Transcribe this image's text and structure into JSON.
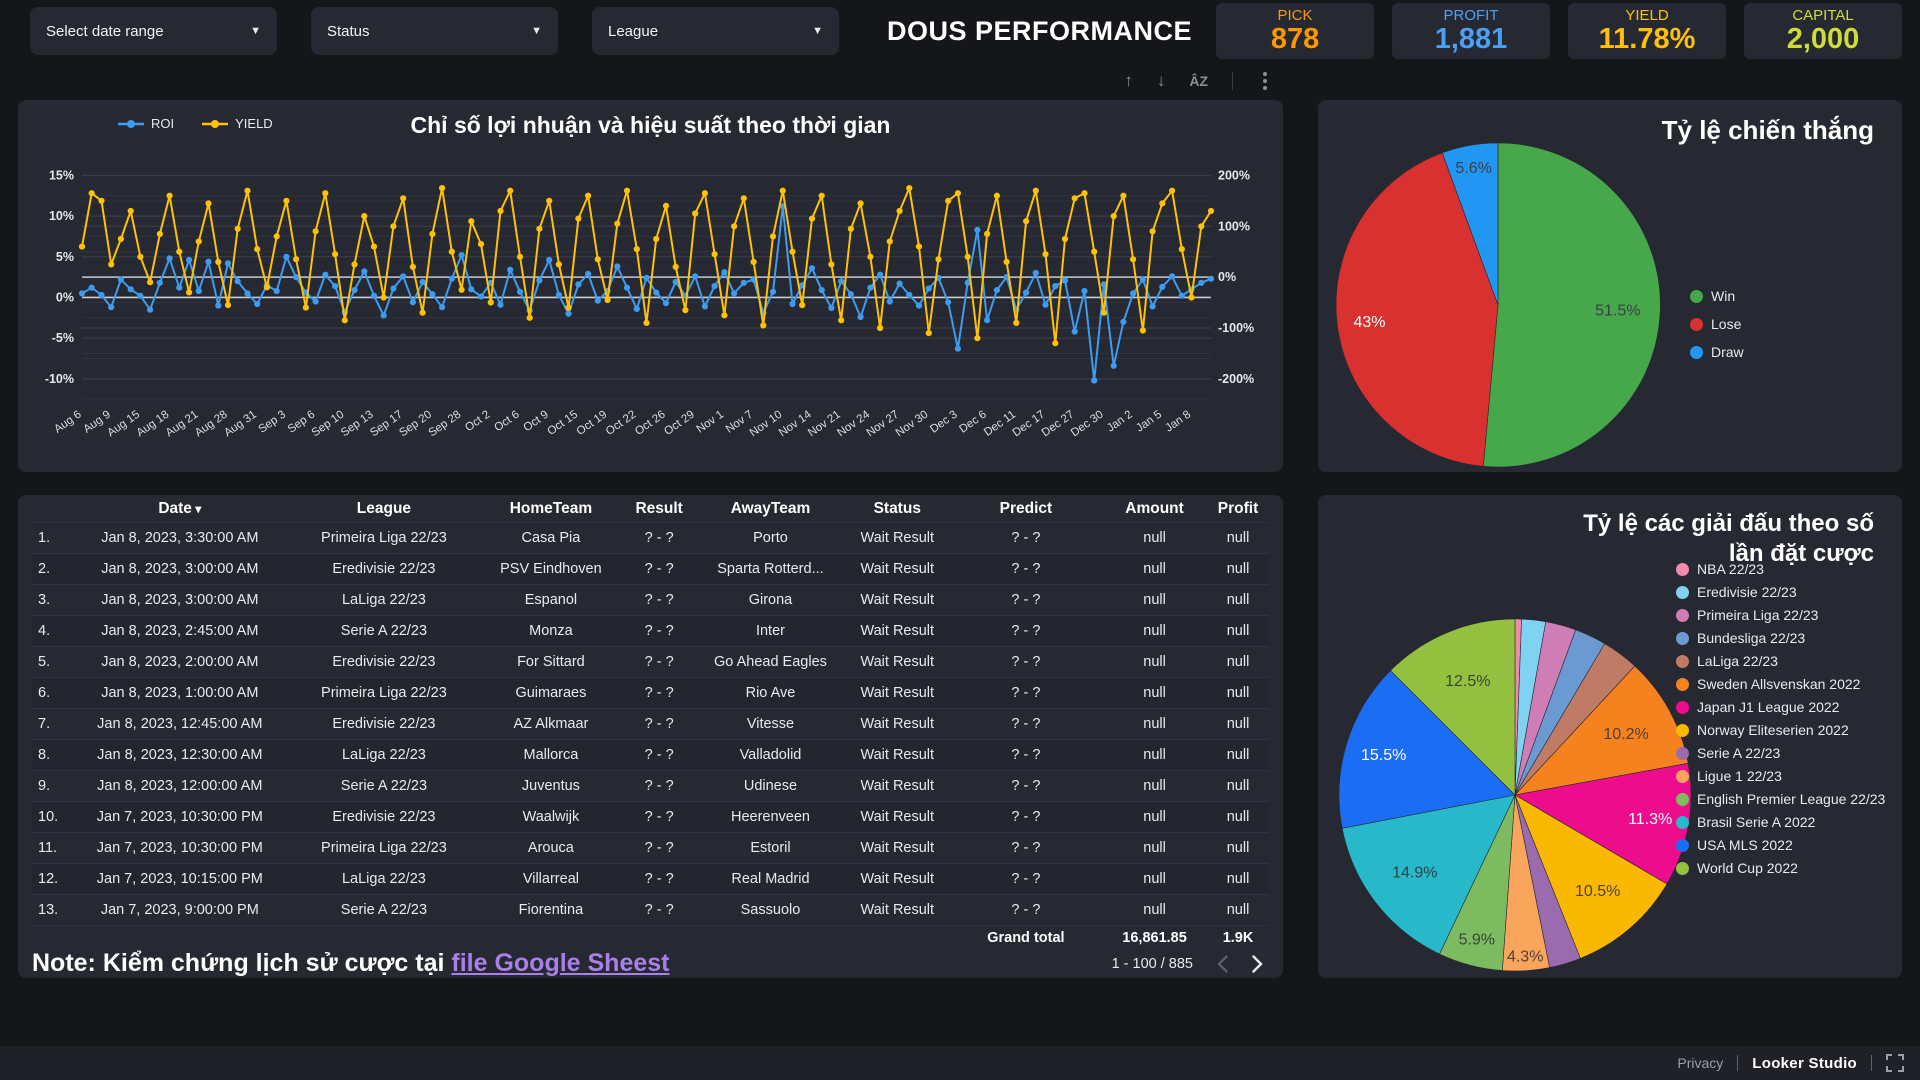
{
  "header": {
    "filters": [
      {
        "label": "Select date range"
      },
      {
        "label": "Status"
      },
      {
        "label": "League"
      }
    ],
    "title": "DOUS PERFORMANCE",
    "kpis": [
      {
        "label": "PICK",
        "value": "878",
        "color": "#FF9800"
      },
      {
        "label": "PROFIT",
        "value": "1,881",
        "color": "#4BA0F4"
      },
      {
        "label": "YIELD",
        "value": "11.78%",
        "color": "#FFC107"
      },
      {
        "label": "CAPITAL",
        "value": "2,000",
        "color": "#CDDC39"
      }
    ]
  },
  "toolbar": {
    "up": "↑",
    "down": "↓",
    "sort_az": "ÂZ"
  },
  "chart_data": [
    {
      "type": "line",
      "title": "Chỉ số lợi nhuận và hiệu suất theo thời gian",
      "legend_position": "top-left",
      "grid": true,
      "x_labels": [
        "Aug 6",
        "Aug 9",
        "Aug 15",
        "Aug 18",
        "Aug 21",
        "Aug 28",
        "Aug 31",
        "Sep 3",
        "Sep 6",
        "Sep 10",
        "Sep 13",
        "Sep 17",
        "Sep 20",
        "Sep 28",
        "Oct 2",
        "Oct 6",
        "Oct 9",
        "Oct 15",
        "Oct 19",
        "Oct 22",
        "Oct 26",
        "Oct 29",
        "Nov 1",
        "Nov 7",
        "Nov 10",
        "Nov 14",
        "Nov 21",
        "Nov 24",
        "Nov 27",
        "Nov 30",
        "Dec 3",
        "Dec 6",
        "Dec 11",
        "Dec 17",
        "Dec 27",
        "Dec 30",
        "Jan 2",
        "Jan 5",
        "Jan 8"
      ],
      "points_per_label": 3,
      "left_axis": {
        "label_format": "percent",
        "ticks": [
          15,
          10,
          5,
          0,
          -5,
          -10
        ],
        "min": -10,
        "max": 15
      },
      "right_axis": {
        "label_format": "percent",
        "ticks": [
          200,
          100,
          0,
          -100,
          -200
        ],
        "min": -200,
        "max": 200
      },
      "series": [
        {
          "name": "ROI",
          "axis": "left",
          "color": "#3D9BF0",
          "values": [
            0.5,
            1.2,
            0.3,
            -1.2,
            2.2,
            1.0,
            0.2,
            -1.5,
            1.8,
            4.8,
            1.2,
            4.6,
            0.8,
            4.4,
            -1.0,
            4.2,
            2.0,
            0.5,
            -0.8,
            1.5,
            0.8,
            5.0,
            2.5,
            0.6,
            -0.5,
            2.8,
            1.4,
            -1.8,
            0.9,
            3.2,
            0.2,
            -2.2,
            1.1,
            2.6,
            -0.6,
            1.9,
            0.4,
            -1.2,
            2.3,
            5.2,
            1.0,
            0.1,
            1.8,
            -0.9,
            3.4,
            0.7,
            -1.6,
            2.1,
            4.6,
            0.3,
            -2.0,
            1.6,
            2.9,
            -0.4,
            0.8,
            3.8,
            1.2,
            -1.4,
            2.4,
            0.6,
            -0.7,
            1.9,
            0.2,
            2.6,
            -1.1,
            1.4,
            3.1,
            0.5,
            1.8,
            2.2,
            -1.9,
            0.7,
            11.2,
            -0.8,
            1.5,
            3.6,
            0.9,
            -1.3,
            2.0,
            0.4,
            -2.4,
            1.2,
            2.8,
            -0.5,
            1.7,
            0.3,
            -1.0,
            1.1,
            2.4,
            -0.6,
            -6.3,
            1.8,
            8.3,
            -2.8,
            0.9,
            2.5,
            -1.5,
            0.6,
            3.0,
            -0.9,
            1.4,
            2.1,
            -4.2,
            0.8,
            -10.2,
            1.6,
            -8.4,
            -3.0,
            0.5,
            2.2,
            -1.1,
            1.3,
            2.6,
            0.2,
            1.0,
            1.8,
            2.3
          ]
        },
        {
          "name": "YIELD",
          "axis": "right",
          "color": "#FFC107",
          "values": [
            60,
            165,
            150,
            25,
            75,
            130,
            40,
            -10,
            85,
            160,
            50,
            -30,
            70,
            145,
            30,
            -55,
            95,
            170,
            55,
            -20,
            80,
            150,
            35,
            -60,
            90,
            165,
            45,
            -85,
            25,
            120,
            60,
            -40,
            100,
            155,
            20,
            -70,
            85,
            175,
            50,
            -25,
            110,
            65,
            -50,
            130,
            170,
            40,
            -80,
            95,
            150,
            25,
            -60,
            115,
            160,
            35,
            -45,
            105,
            170,
            55,
            -90,
            75,
            140,
            20,
            -65,
            125,
            165,
            45,
            -75,
            100,
            155,
            30,
            -95,
            80,
            170,
            50,
            -55,
            115,
            160,
            25,
            -85,
            95,
            145,
            40,
            -100,
            70,
            130,
            175,
            60,
            -110,
            35,
            150,
            165,
            40,
            -120,
            85,
            160,
            30,
            -90,
            110,
            170,
            45,
            -130,
            75,
            155,
            165,
            50,
            -70,
            120,
            160,
            35,
            -105,
            90,
            145,
            170,
            55,
            -40,
            100,
            130
          ]
        }
      ]
    },
    {
      "type": "pie",
      "title": "Tỷ lệ chiến thắng",
      "legend_position": "right",
      "slices": [
        {
          "label": "Win",
          "value": 51.5,
          "display": "51.5%",
          "color": "#47A84B",
          "text_color": "#3A3F46",
          "label_r": 0.74
        },
        {
          "label": "Lose",
          "value": 43.0,
          "display": "43%",
          "color": "#D8312F",
          "text_color": "#FFFFFF",
          "label_r": 0.8
        },
        {
          "label": "Draw",
          "value": 5.6,
          "display": "5.6%",
          "color": "#2196F3",
          "text_color": "#3A3F46",
          "label_r": 0.86
        }
      ]
    },
    {
      "type": "pie",
      "title": "Tỷ lệ các giải đấu theo số lần đặt cược",
      "legend_position": "right",
      "slices": [
        {
          "label": "NBA 22/23",
          "value": 0.6,
          "display": "",
          "color": "#F08BAE",
          "text_color": "#3A3F46",
          "label_r": 0.75
        },
        {
          "label": "Eredivisie 22/23",
          "value": 2.2,
          "display": "",
          "color": "#7FD2F2",
          "text_color": "#3A3F46",
          "label_r": 0.75
        },
        {
          "label": "Primeira Liga 22/23",
          "value": 2.8,
          "display": "",
          "color": "#CE7DB5",
          "text_color": "#3A3F46",
          "label_r": 0.75
        },
        {
          "label": "Bundesliga 22/23",
          "value": 2.9,
          "display": "",
          "color": "#6A9AD1",
          "text_color": "#3A3F46",
          "label_r": 0.75
        },
        {
          "label": "LaLiga 22/23",
          "value": 3.4,
          "display": "",
          "color": "#C07B66",
          "text_color": "#3A3F46",
          "label_r": 0.75
        },
        {
          "label": "Sweden Allsvenskan 2022",
          "value": 10.2,
          "display": "10.2%",
          "color": "#F6821F",
          "text_color": "#4A4238",
          "label_r": 0.72
        },
        {
          "label": "Japan J1 League 2022",
          "value": 11.3,
          "display": "11.3%",
          "color": "#EC0C8C",
          "text_color": "#FFFFFF",
          "label_r": 0.78
        },
        {
          "label": "Norway Eliteserien 2022",
          "value": 10.5,
          "display": "10.5%",
          "color": "#FBB800",
          "text_color": "#4A4238",
          "label_r": 0.72
        },
        {
          "label": "Serie A 22/23",
          "value": 2.9,
          "display": "",
          "color": "#9A6BAD",
          "text_color": "#3A3F46",
          "label_r": 0.75
        },
        {
          "label": "Ligue 1 22/23",
          "value": 4.3,
          "display": "4.3%",
          "color": "#F9A55B",
          "text_color": "#4A4238",
          "label_r": 0.92
        },
        {
          "label": "English Premier League 22/23",
          "value": 5.9,
          "display": "5.9%",
          "color": "#7DBB60",
          "text_color": "#3A4438",
          "label_r": 0.85
        },
        {
          "label": "Brasil Serie A 2022",
          "value": 14.9,
          "display": "14.9%",
          "color": "#27B9C9",
          "text_color": "#2F4346",
          "label_r": 0.72
        },
        {
          "label": "USA MLS 2022",
          "value": 15.5,
          "display": "15.5%",
          "color": "#1B6EF3",
          "text_color": "#FFFFFF",
          "label_r": 0.78
        },
        {
          "label": "World Cup 2022",
          "value": 12.5,
          "display": "12.5%",
          "color": "#93C13F",
          "text_color": "#3A4438",
          "label_r": 0.7
        }
      ]
    }
  ],
  "table": {
    "columns": [
      "",
      "Date",
      "League",
      "HomeTeam",
      "Result",
      "AwayTeam",
      "Status",
      "Predict",
      "Amount",
      "Profit"
    ],
    "sorted_column": "Date",
    "rows": [
      [
        "1.",
        "Jan 8, 2023, 3:30:00 AM",
        "Primeira Liga 22/23",
        "Casa Pia",
        "? - ?",
        "Porto",
        "Wait Result",
        "? - ?",
        "null",
        "null"
      ],
      [
        "2.",
        "Jan 8, 2023, 3:00:00 AM",
        "Eredivisie 22/23",
        "PSV Eindhoven",
        "? - ?",
        "Sparta Rotterd...",
        "Wait Result",
        "? - ?",
        "null",
        "null"
      ],
      [
        "3.",
        "Jan 8, 2023, 3:00:00 AM",
        "LaLiga 22/23",
        "Espanol",
        "? - ?",
        "Girona",
        "Wait Result",
        "? - ?",
        "null",
        "null"
      ],
      [
        "4.",
        "Jan 8, 2023, 2:45:00 AM",
        "Serie A 22/23",
        "Monza",
        "? - ?",
        "Inter",
        "Wait Result",
        "? - ?",
        "null",
        "null"
      ],
      [
        "5.",
        "Jan 8, 2023, 2:00:00 AM",
        "Eredivisie 22/23",
        "For Sittard",
        "? - ?",
        "Go Ahead Eagles",
        "Wait Result",
        "? - ?",
        "null",
        "null"
      ],
      [
        "6.",
        "Jan 8, 2023, 1:00:00 AM",
        "Primeira Liga 22/23",
        "Guimaraes",
        "? - ?",
        "Rio Ave",
        "Wait Result",
        "? - ?",
        "null",
        "null"
      ],
      [
        "7.",
        "Jan 8, 2023, 12:45:00 AM",
        "Eredivisie 22/23",
        "AZ Alkmaar",
        "? - ?",
        "Vitesse",
        "Wait Result",
        "? - ?",
        "null",
        "null"
      ],
      [
        "8.",
        "Jan 8, 2023, 12:30:00 AM",
        "LaLiga 22/23",
        "Mallorca",
        "? - ?",
        "Valladolid",
        "Wait Result",
        "? - ?",
        "null",
        "null"
      ],
      [
        "9.",
        "Jan 8, 2023, 12:00:00 AM",
        "Serie A 22/23",
        "Juventus",
        "? - ?",
        "Udinese",
        "Wait Result",
        "? - ?",
        "null",
        "null"
      ],
      [
        "10.",
        "Jan 7, 2023, 10:30:00 PM",
        "Eredivisie 22/23",
        "Waalwijk",
        "? - ?",
        "Heerenveen",
        "Wait Result",
        "? - ?",
        "null",
        "null"
      ],
      [
        "11.",
        "Jan 7, 2023, 10:30:00 PM",
        "Primeira Liga 22/23",
        "Arouca",
        "? - ?",
        "Estoril",
        "Wait Result",
        "? - ?",
        "null",
        "null"
      ],
      [
        "12.",
        "Jan 7, 2023, 10:15:00 PM",
        "LaLiga 22/23",
        "Villarreal",
        "? - ?",
        "Real Madrid",
        "Wait Result",
        "? - ?",
        "null",
        "null"
      ],
      [
        "13.",
        "Jan 7, 2023, 9:00:00 PM",
        "Serie A 22/23",
        "Fiorentina",
        "? - ?",
        "Sassuolo",
        "Wait Result",
        "? - ?",
        "null",
        "null"
      ]
    ],
    "grand_total": {
      "label": "Grand total",
      "amount": "16,861.85",
      "profit": "1.9K"
    },
    "note_prefix": "Note: Kiểm chứng lịch sử cược tại ",
    "note_link": "file Google Sheest",
    "pagination": "1 - 100 / 885"
  },
  "footer": {
    "privacy": "Privacy",
    "brand": "Looker Studio"
  }
}
